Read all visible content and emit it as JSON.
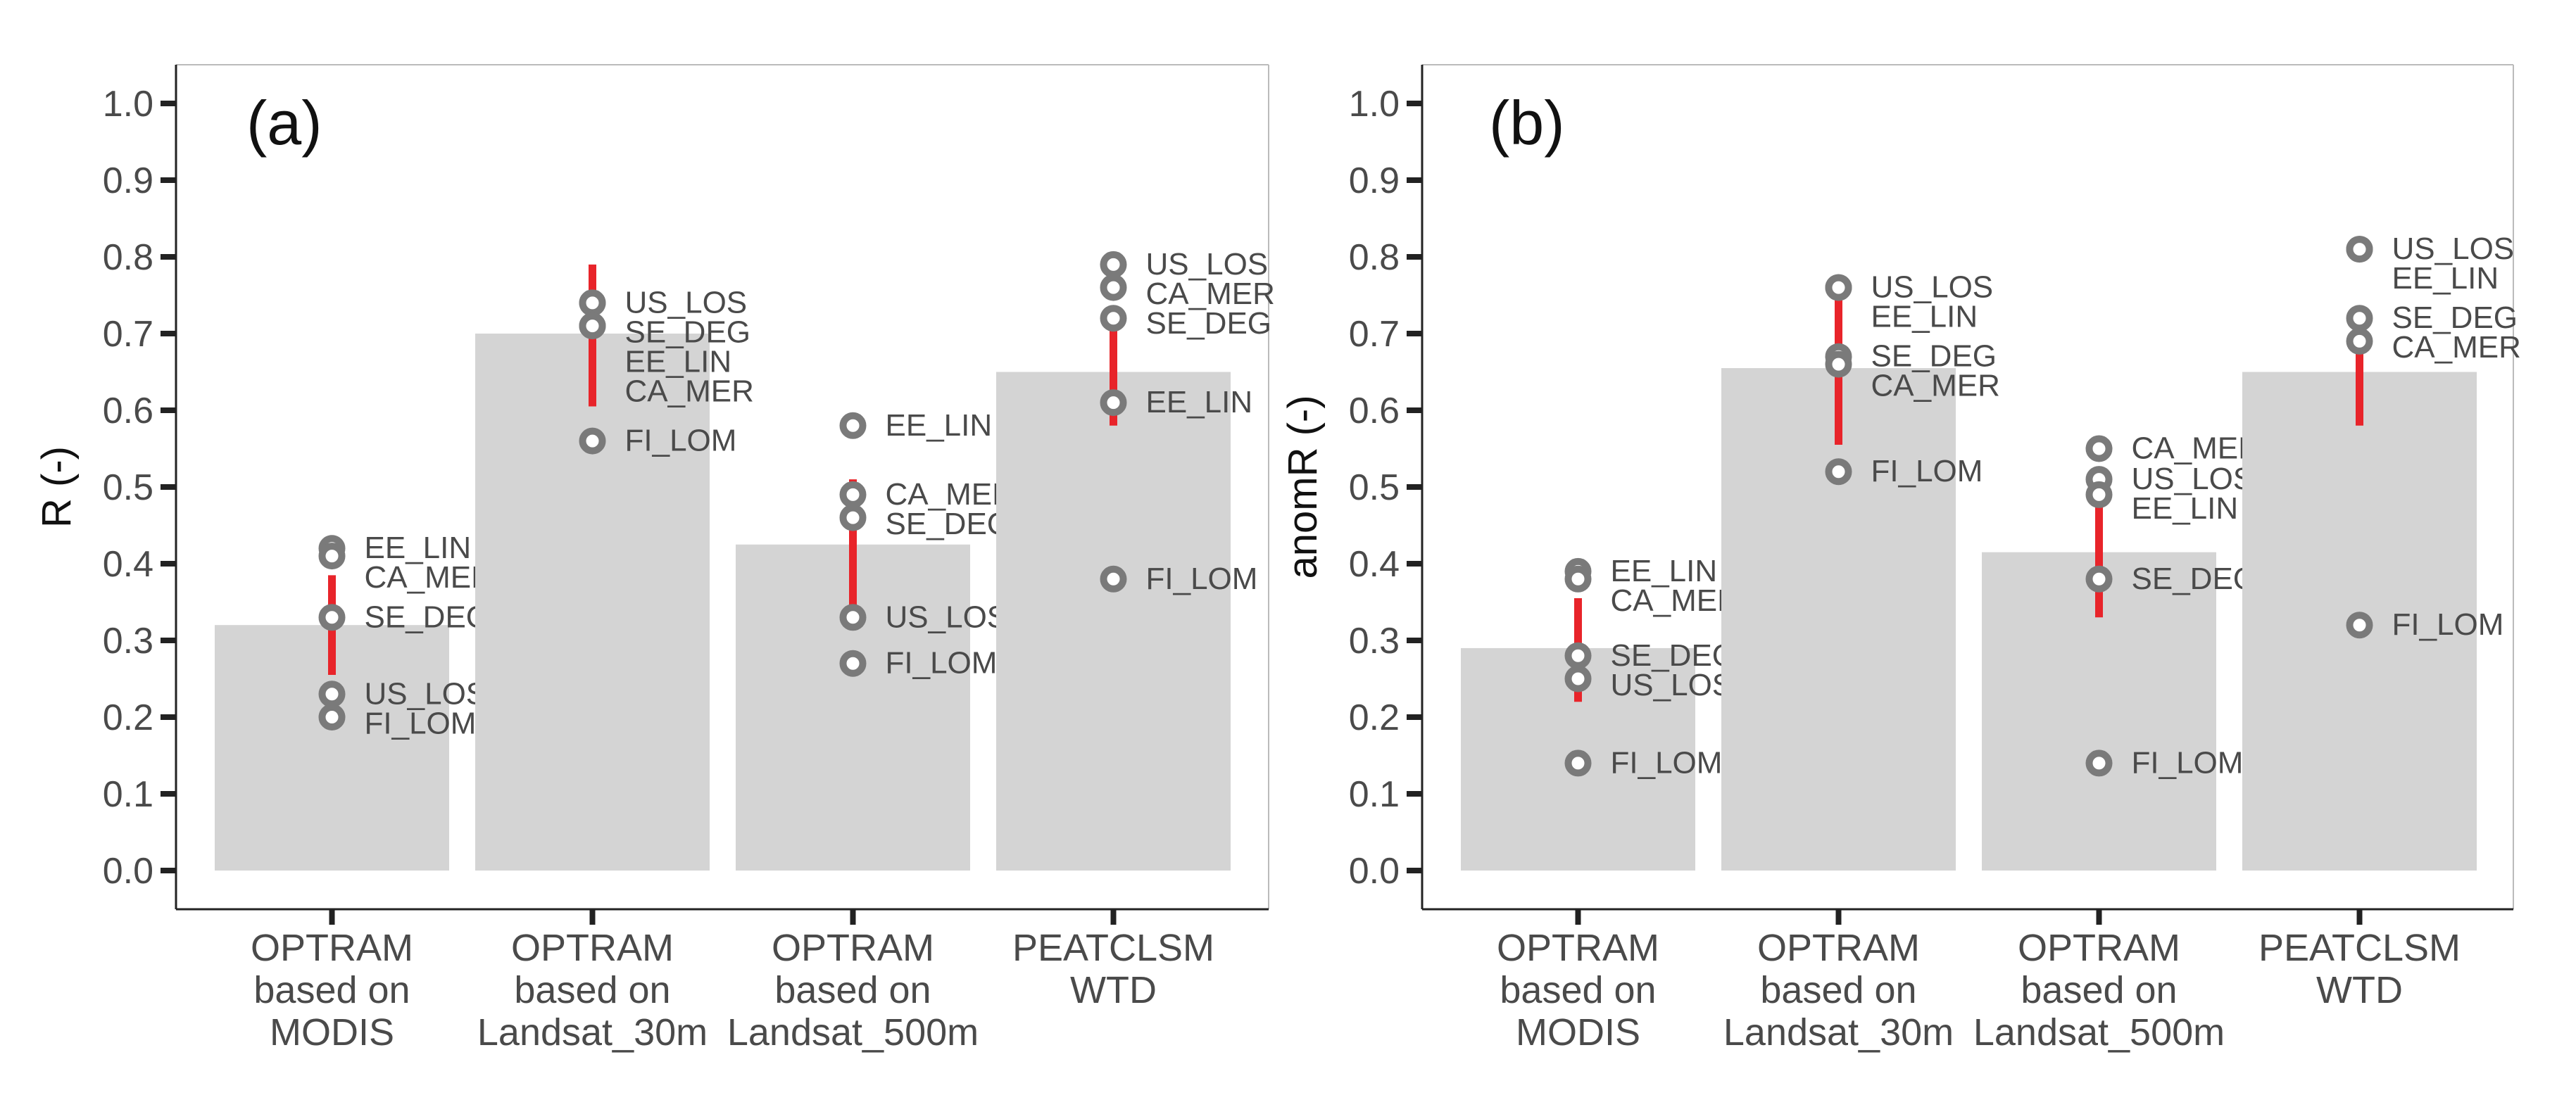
{
  "chart_data": [
    {
      "type": "bar",
      "panel_label": "(a)",
      "ylabel": "R (-)",
      "ylim": [
        0,
        1.0
      ],
      "yticks": [
        "0.0",
        "0.1",
        "0.2",
        "0.3",
        "0.4",
        "0.5",
        "0.6",
        "0.7",
        "0.8",
        "0.9",
        "1.0"
      ],
      "grid": false,
      "categories": [
        [
          "OPTRAM",
          "based on",
          "MODIS"
        ],
        [
          "OPTRAM",
          "based on",
          "Landsat_30m"
        ],
        [
          "OPTRAM",
          "based on",
          "Landsat_500m"
        ],
        [
          "PEATCLSM",
          "WTD"
        ]
      ],
      "bar_values": [
        0.32,
        0.7,
        0.425,
        0.65
      ],
      "error_ranges": [
        [
          0.255,
          0.385
        ],
        [
          0.605,
          0.79
        ],
        [
          0.345,
          0.51
        ],
        [
          0.58,
          0.72
        ]
      ],
      "sites": [
        [
          {
            "name": "EE_LIN",
            "value": 0.42
          },
          {
            "name": "CA_MER",
            "value": 0.41
          },
          {
            "name": "SE_DEG",
            "value": 0.33
          },
          {
            "name": "US_LOS",
            "value": 0.23
          },
          {
            "name": "FI_LOM",
            "value": 0.2
          }
        ],
        [
          {
            "name": "US_LOS",
            "value": 0.74
          },
          {
            "name": "SE_DEG",
            "value": 0.74
          },
          {
            "name": "EE_LIN",
            "value": 0.71
          },
          {
            "name": "CA_MER",
            "value": 0.71
          },
          {
            "name": "FI_LOM",
            "value": 0.56
          }
        ],
        [
          {
            "name": "EE_LIN",
            "value": 0.58
          },
          {
            "name": "CA_MER",
            "value": 0.49
          },
          {
            "name": "SE_DEG",
            "value": 0.46
          },
          {
            "name": "US_LOS",
            "value": 0.33
          },
          {
            "name": "FI_LOM",
            "value": 0.27
          }
        ],
        [
          {
            "name": "US_LOS",
            "value": 0.79
          },
          {
            "name": "CA_MER",
            "value": 0.76
          },
          {
            "name": "SE_DEG",
            "value": 0.72
          },
          {
            "name": "EE_LIN",
            "value": 0.61
          },
          {
            "name": "FI_LOM",
            "value": 0.38
          }
        ]
      ]
    },
    {
      "type": "bar",
      "panel_label": "(b)",
      "ylabel": "anomR (-)",
      "ylim": [
        0,
        1.0
      ],
      "yticks": [
        "0.0",
        "0.1",
        "0.2",
        "0.3",
        "0.4",
        "0.5",
        "0.6",
        "0.7",
        "0.8",
        "0.9",
        "1.0"
      ],
      "grid": false,
      "categories": [
        [
          "OPTRAM",
          "based on",
          "MODIS"
        ],
        [
          "OPTRAM",
          "based on",
          "Landsat_30m"
        ],
        [
          "OPTRAM",
          "based on",
          "Landsat_500m"
        ],
        [
          "PEATCLSM",
          "WTD"
        ]
      ],
      "bar_values": [
        0.29,
        0.655,
        0.415,
        0.65
      ],
      "error_ranges": [
        [
          0.22,
          0.355
        ],
        [
          0.555,
          0.755
        ],
        [
          0.33,
          0.5
        ],
        [
          0.58,
          0.715
        ]
      ],
      "sites": [
        [
          {
            "name": "EE_LIN",
            "value": 0.39
          },
          {
            "name": "CA_MER",
            "value": 0.38
          },
          {
            "name": "SE_DEG",
            "value": 0.28
          },
          {
            "name": "US_LOS",
            "value": 0.25
          },
          {
            "name": "FI_LOM",
            "value": 0.14
          }
        ],
        [
          {
            "name": "US_LOS",
            "value": 0.76
          },
          {
            "name": "EE_LIN",
            "value": 0.76
          },
          {
            "name": "SE_DEG",
            "value": 0.67
          },
          {
            "name": "CA_MER",
            "value": 0.66
          },
          {
            "name": "FI_LOM",
            "value": 0.52
          }
        ],
        [
          {
            "name": "CA_MER",
            "value": 0.55
          },
          {
            "name": "US_LOS",
            "value": 0.51
          },
          {
            "name": "EE_LIN",
            "value": 0.49
          },
          {
            "name": "SE_DEG",
            "value": 0.38
          },
          {
            "name": "FI_LOM",
            "value": 0.14
          }
        ],
        [
          {
            "name": "US_LOS",
            "value": 0.81
          },
          {
            "name": "EE_LIN",
            "value": 0.81
          },
          {
            "name": "SE_DEG",
            "value": 0.72
          },
          {
            "name": "CA_MER",
            "value": 0.69
          },
          {
            "name": "FI_LOM",
            "value": 0.32
          }
        ]
      ]
    }
  ],
  "colors": {
    "bar": "#d4d4d4",
    "error": "#e8242a",
    "marker": "#7a7a7a",
    "text": "#4a4a4a",
    "axis": "#222222",
    "frame": "#bbbbbb"
  }
}
